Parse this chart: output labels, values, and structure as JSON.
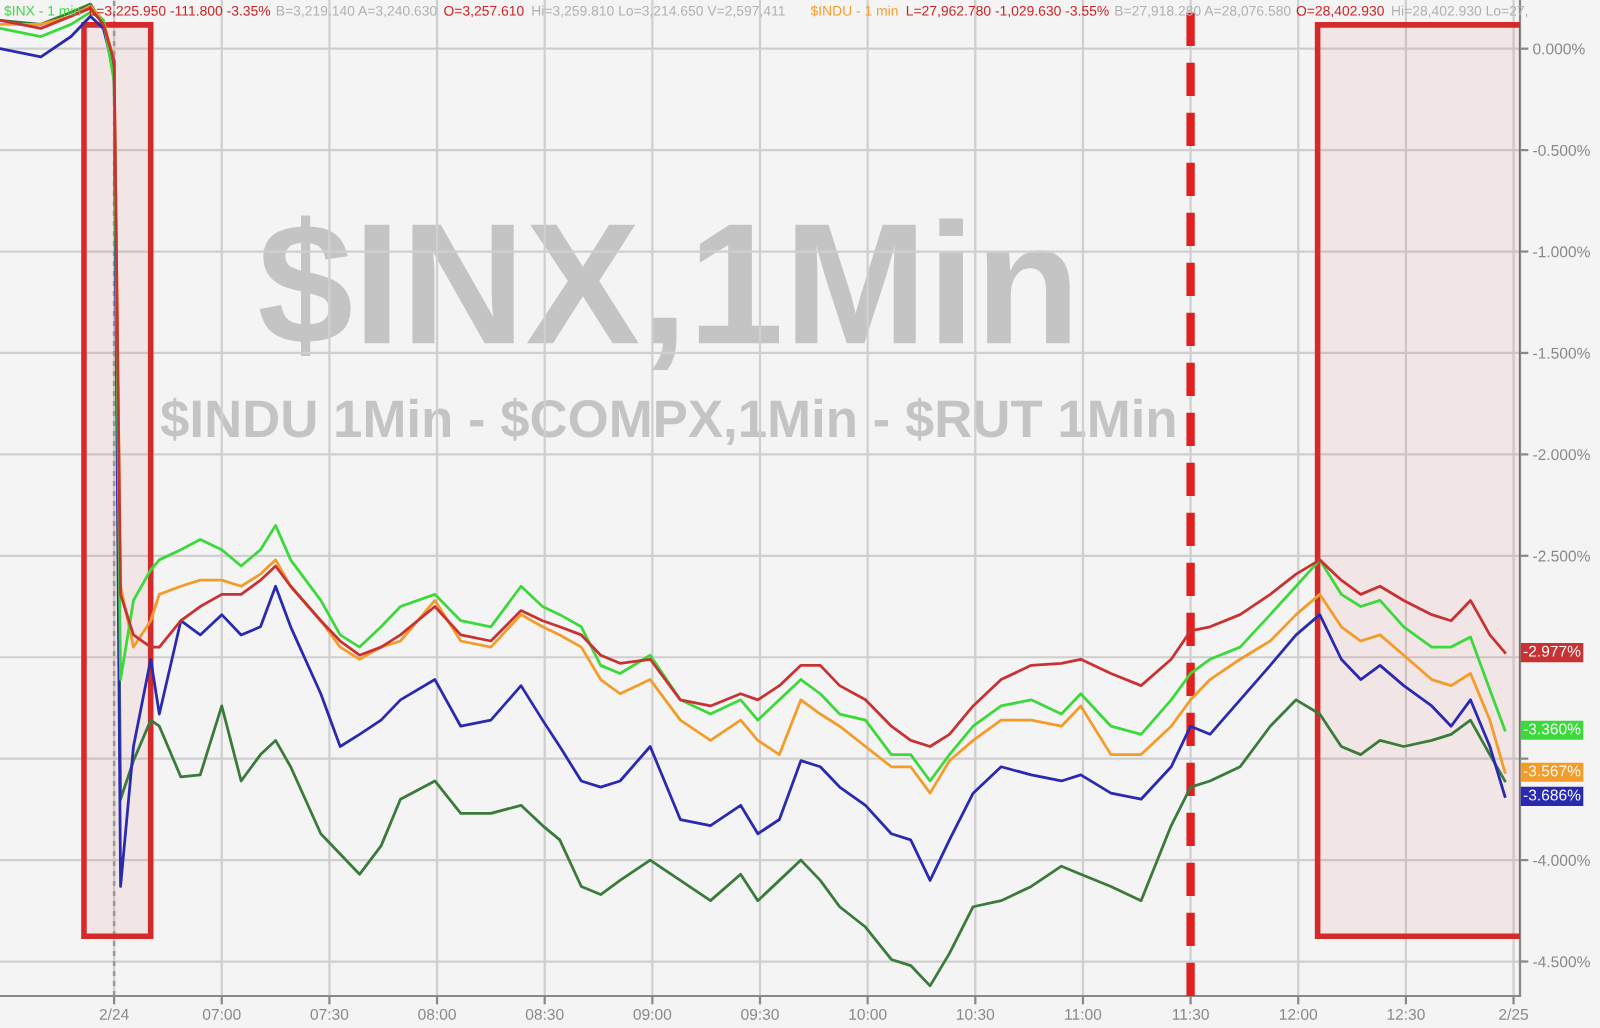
{
  "chart_data": {
    "type": "line",
    "title": "$INX,1Min",
    "subtitle": "$INDU 1Min - $COMPX,1Min - $RUT 1Min",
    "annotations": [
      "L=3,225.950 -111.800 -3.35%",
      "B=3,219.140 A=3,240.630",
      "O=3,257.610",
      "Hi=3,259.810 Lo=3,214.650 V=2,597,411",
      "L=27,962.780 -1,029.630 -3.55%",
      "B=27,918.280 A=28,076.580",
      "O=28,402.930",
      "Hi=28,402.930 Lo=27,"
    ],
    "x": [
      5.97,
      6.16,
      6.3,
      6.39,
      6.45,
      6.5,
      6.53,
      6.59,
      6.67,
      6.71,
      6.81,
      6.9,
      7.0,
      7.09,
      7.18,
      7.25,
      7.32,
      7.46,
      7.55,
      7.64,
      7.74,
      7.83,
      7.99,
      8.11,
      8.25,
      8.39,
      8.49,
      8.57,
      8.67,
      8.76,
      8.85,
      8.99,
      9.13,
      9.27,
      9.41,
      9.49,
      9.59,
      9.69,
      9.78,
      9.87,
      9.99,
      10.11,
      10.2,
      10.29,
      10.38,
      10.49,
      10.62,
      10.76,
      10.9,
      10.99,
      11.13,
      11.27,
      11.41,
      11.5,
      11.59,
      11.73,
      11.87,
      11.99,
      12.1,
      12.2,
      12.29,
      12.38,
      12.49,
      12.62,
      12.71,
      12.8,
      12.89,
      12.96
    ],
    "series": [
      {
        "color": "#3a7a3a",
        "values": [
          0.14,
          0.12,
          0.18,
          0.22,
          0.12,
          -0.06,
          -3.7,
          -3.51,
          -3.31,
          -3.34,
          -3.59,
          -3.58,
          -3.24,
          -3.61,
          -3.48,
          -3.41,
          -3.54,
          -3.87,
          -3.97,
          -4.07,
          -3.93,
          -3.7,
          -3.61,
          -3.77,
          -3.77,
          -3.73,
          -3.83,
          -3.9,
          -4.13,
          -4.17,
          -4.1,
          -4.0,
          -4.1,
          -4.2,
          -4.07,
          -4.2,
          -4.1,
          -4.0,
          -4.1,
          -4.23,
          -4.33,
          -4.49,
          -4.52,
          -4.62,
          -4.46,
          -4.23,
          -4.2,
          -4.13,
          -4.03,
          -4.07,
          -4.13,
          -4.2,
          -3.83,
          -3.64,
          -3.61,
          -3.54,
          -3.34,
          -3.21,
          -3.28,
          -3.44,
          -3.48,
          -3.41,
          -3.44,
          -3.41,
          -3.38,
          -3.31,
          -3.48,
          -3.61
        ]
      },
      {
        "color": "#2a2ab0",
        "values": [
          0.0,
          -0.04,
          0.06,
          0.16,
          0.1,
          -0.11,
          -4.13,
          -3.44,
          -3.01,
          -3.28,
          -2.82,
          -2.89,
          -2.79,
          -2.89,
          -2.85,
          -2.65,
          -2.85,
          -3.18,
          -3.44,
          -3.38,
          -3.31,
          -3.21,
          -3.11,
          -3.34,
          -3.31,
          -3.14,
          -3.31,
          -3.44,
          -3.61,
          -3.64,
          -3.61,
          -3.44,
          -3.8,
          -3.83,
          -3.73,
          -3.87,
          -3.8,
          -3.51,
          -3.54,
          -3.64,
          -3.73,
          -3.87,
          -3.9,
          -4.1,
          -3.9,
          -3.67,
          -3.54,
          -3.58,
          -3.61,
          -3.58,
          -3.67,
          -3.7,
          -3.54,
          -3.34,
          -3.38,
          -3.21,
          -3.04,
          -2.89,
          -2.79,
          -3.01,
          -3.11,
          -3.04,
          -3.14,
          -3.24,
          -3.34,
          -3.21,
          -3.44,
          -3.686
        ],
        "value_labels": [
          null,
          null,
          null,
          null,
          null,
          null,
          null,
          null,
          null,
          null,
          null,
          null,
          null,
          null,
          null,
          null,
          null,
          null,
          null,
          null,
          null,
          null,
          null,
          null,
          null,
          null,
          null,
          null,
          null,
          null,
          null,
          null,
          null,
          null,
          null,
          null,
          null,
          null,
          null,
          null,
          null,
          null,
          null,
          null,
          null,
          null,
          null,
          null,
          null,
          null,
          null,
          null,
          null,
          null,
          null,
          null,
          null,
          null,
          null,
          null,
          null,
          null,
          null,
          null,
          null,
          null,
          null,
          "-3.686%"
        ]
      },
      {
        "name": "$INDU - 1 min",
        "color": "#f39c2a",
        "values": [
          0.12,
          0.12,
          0.16,
          0.21,
          0.14,
          -0.06,
          -2.65,
          -2.95,
          -2.82,
          -2.69,
          -2.65,
          -2.62,
          -2.62,
          -2.65,
          -2.59,
          -2.52,
          -2.65,
          -2.82,
          -2.95,
          -3.01,
          -2.95,
          -2.92,
          -2.72,
          -2.92,
          -2.95,
          -2.79,
          -2.85,
          -2.89,
          -2.95,
          -3.11,
          -3.18,
          -3.11,
          -3.31,
          -3.41,
          -3.31,
          -3.41,
          -3.48,
          -3.21,
          -3.28,
          -3.34,
          -3.44,
          -3.54,
          -3.54,
          -3.67,
          -3.51,
          -3.41,
          -3.31,
          -3.31,
          -3.34,
          -3.24,
          -3.48,
          -3.48,
          -3.34,
          -3.21,
          -3.11,
          -3.01,
          -2.92,
          -2.79,
          -2.69,
          -2.85,
          -2.92,
          -2.89,
          -2.99,
          -3.11,
          -3.14,
          -3.08,
          -3.31,
          -3.567
        ],
        "value_labels": [
          null,
          null,
          null,
          null,
          null,
          null,
          null,
          null,
          null,
          null,
          null,
          null,
          null,
          null,
          null,
          null,
          null,
          null,
          null,
          null,
          null,
          null,
          null,
          null,
          null,
          null,
          null,
          null,
          null,
          null,
          null,
          null,
          null,
          null,
          null,
          null,
          null,
          null,
          null,
          null,
          null,
          null,
          null,
          null,
          null,
          null,
          null,
          null,
          null,
          null,
          null,
          null,
          null,
          null,
          null,
          null,
          null,
          null,
          null,
          null,
          null,
          null,
          null,
          null,
          null,
          null,
          null,
          "-3.567%"
        ]
      },
      {
        "name": "$INX - 1 min",
        "color": "#3cd83c",
        "values": [
          0.1,
          0.06,
          0.12,
          0.18,
          0.14,
          -0.16,
          -3.11,
          -2.72,
          -2.57,
          -2.52,
          -2.47,
          -2.42,
          -2.47,
          -2.55,
          -2.47,
          -2.35,
          -2.52,
          -2.72,
          -2.89,
          -2.95,
          -2.85,
          -2.75,
          -2.69,
          -2.82,
          -2.85,
          -2.65,
          -2.75,
          -2.79,
          -2.85,
          -3.04,
          -3.08,
          -2.99,
          -3.21,
          -3.28,
          -3.21,
          -3.31,
          -3.21,
          -3.11,
          -3.18,
          -3.28,
          -3.31,
          -3.48,
          -3.48,
          -3.61,
          -3.48,
          -3.34,
          -3.24,
          -3.21,
          -3.28,
          -3.18,
          -3.34,
          -3.38,
          -3.21,
          -3.08,
          -3.01,
          -2.95,
          -2.79,
          -2.65,
          -2.52,
          -2.69,
          -2.75,
          -2.72,
          -2.85,
          -2.95,
          -2.95,
          -2.9,
          -3.16,
          -3.36
        ],
        "value_labels": [
          null,
          null,
          null,
          null,
          null,
          null,
          null,
          null,
          null,
          null,
          null,
          null,
          null,
          null,
          null,
          null,
          null,
          null,
          null,
          null,
          null,
          null,
          null,
          null,
          null,
          null,
          null,
          null,
          null,
          null,
          null,
          null,
          null,
          null,
          null,
          null,
          null,
          null,
          null,
          null,
          null,
          null,
          null,
          null,
          null,
          null,
          null,
          null,
          null,
          null,
          null,
          null,
          null,
          null,
          null,
          null,
          null,
          null,
          null,
          null,
          null,
          null,
          null,
          null,
          null,
          null,
          null,
          "-3.360%"
        ]
      },
      {
        "color": "#c83232",
        "values": [
          0.14,
          0.1,
          0.16,
          0.2,
          0.12,
          -0.06,
          -2.69,
          -2.89,
          -2.95,
          -2.95,
          -2.82,
          -2.75,
          -2.69,
          -2.69,
          -2.62,
          -2.55,
          -2.65,
          -2.82,
          -2.92,
          -2.99,
          -2.95,
          -2.89,
          -2.75,
          -2.89,
          -2.92,
          -2.77,
          -2.82,
          -2.85,
          -2.89,
          -2.99,
          -3.03,
          -3.01,
          -3.21,
          -3.24,
          -3.18,
          -3.21,
          -3.14,
          -3.04,
          -3.04,
          -3.14,
          -3.21,
          -3.34,
          -3.41,
          -3.44,
          -3.38,
          -3.24,
          -3.11,
          -3.04,
          -3.03,
          -3.01,
          -3.08,
          -3.14,
          -3.01,
          -2.87,
          -2.85,
          -2.79,
          -2.69,
          -2.59,
          -2.52,
          -2.62,
          -2.69,
          -2.65,
          -2.72,
          -2.79,
          -2.82,
          -2.72,
          -2.89,
          -2.977
        ],
        "value_labels": [
          null,
          null,
          null,
          null,
          null,
          null,
          null,
          null,
          null,
          null,
          null,
          null,
          null,
          null,
          null,
          null,
          null,
          null,
          null,
          null,
          null,
          null,
          null,
          null,
          null,
          null,
          null,
          null,
          null,
          null,
          null,
          null,
          null,
          null,
          null,
          null,
          null,
          null,
          null,
          null,
          null,
          null,
          null,
          null,
          null,
          null,
          null,
          null,
          null,
          null,
          null,
          null,
          null,
          null,
          null,
          null,
          null,
          null,
          null,
          null,
          null,
          null,
          null,
          null,
          null,
          null,
          null,
          "-2.977%"
        ]
      }
    ],
    "xlim": [
      5.97,
      13.03
    ],
    "ylim": [
      -4.67,
      0.24
    ],
    "xticks": [
      {
        "value": 6.5,
        "label": "2/24"
      },
      {
        "value": 7,
        "label": "07:00"
      },
      {
        "value": 7.5,
        "label": "07:30"
      },
      {
        "value": 8,
        "label": "08:00"
      },
      {
        "value": 8.5,
        "label": "08:30"
      },
      {
        "value": 9,
        "label": "09:00"
      },
      {
        "value": 9.5,
        "label": "09:30"
      },
      {
        "value": 10,
        "label": "10:00"
      },
      {
        "value": 10.5,
        "label": "10:30"
      },
      {
        "value": 11,
        "label": "11:00"
      },
      {
        "value": 11.5,
        "label": "11:30"
      },
      {
        "value": 12,
        "label": "12:00"
      },
      {
        "value": 12.5,
        "label": "12:30"
      },
      {
        "value": 13,
        "label": "2/25"
      }
    ],
    "yticks": [
      {
        "value": 0,
        "label": "0.000%"
      },
      {
        "value": -0.5,
        "label": "-0.500%"
      },
      {
        "value": -1,
        "label": "-1.000%"
      },
      {
        "value": -1.5,
        "label": "-1.500%"
      },
      {
        "value": -2,
        "label": "-2.000%"
      },
      {
        "value": -2.5,
        "label": "-2.500%"
      },
      {
        "value": -3,
        "label": null
      },
      {
        "value": -3.5,
        "label": null
      },
      {
        "value": -4,
        "label": "-4.000%"
      },
      {
        "value": -4.5,
        "label": "-4.500%"
      }
    ],
    "ref_lines": [
      {
        "axis": "x",
        "value": 6.5,
        "color": "#999999",
        "line_style": "dotted"
      },
      {
        "axis": "x",
        "value": 11.5,
        "color": "#e02020",
        "line_style": "dashed"
      }
    ],
    "bands": [
      {
        "axis": "x",
        "from": 6.36,
        "to": 6.67,
        "color": "#d42a2a"
      },
      {
        "axis": "x",
        "from": 12.09,
        "to": 13.04,
        "color": "#d42a2a"
      }
    ],
    "grid": true,
    "marker": "none",
    "line_style": "solid"
  }
}
